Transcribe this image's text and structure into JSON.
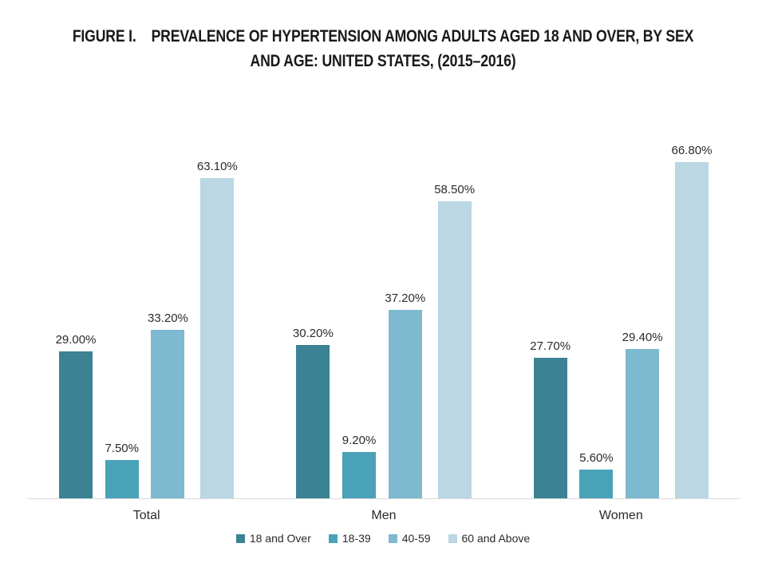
{
  "title": {
    "line1": "FIGURE I.    PREVALENCE OF HYPERTENSION AMONG ADULTS AGED 18 AND OVER, BY SEX",
    "line2": "AND AGE: UNITED STATES, (2015–2016)"
  },
  "chart_data": {
    "type": "bar",
    "title": "FIGURE I. PREVALENCE OF HYPERTENSION AMONG ADULTS AGED 18 AND OVER, BY SEX AND AGE: UNITED STATES, (2015–2016)",
    "categories": [
      "Total",
      "Men",
      "Women"
    ],
    "series": [
      {
        "name": "18 and Over",
        "color": "#3a8294",
        "values": [
          29.0,
          30.2,
          27.7
        ],
        "labels": [
          "29.00%",
          "30.20%",
          "27.70%"
        ]
      },
      {
        "name": "18-39",
        "color": "#4aa2b8",
        "values": [
          7.5,
          9.2,
          5.6
        ],
        "labels": [
          "7.50%",
          "9.20%",
          "5.60%"
        ]
      },
      {
        "name": "40-59",
        "color": "#7eb9cf",
        "values": [
          33.2,
          37.2,
          29.4
        ],
        "labels": [
          "33.20%",
          "37.20%",
          "29.40%"
        ]
      },
      {
        "name": "60 and Above",
        "color": "#bad7e3",
        "values": [
          63.1,
          58.5,
          66.8
        ],
        "labels": [
          "63.10%",
          "58.50%",
          "66.80%"
        ]
      }
    ],
    "xlabel": "",
    "ylabel": "",
    "ylim": [
      0,
      70
    ],
    "grid": false,
    "y_axis_visible": false,
    "data_labels": true,
    "legend_position": "bottom",
    "axis_line_color": "#d9d9d9",
    "background_color": "#ffffff",
    "text_color": "#2b2b2b"
  }
}
